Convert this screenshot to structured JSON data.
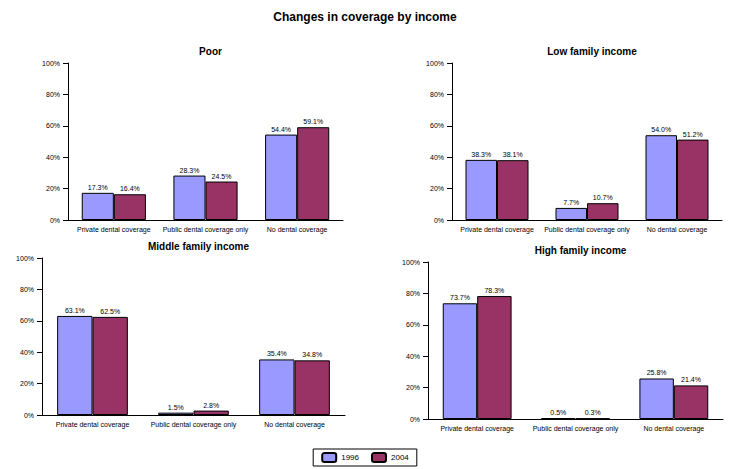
{
  "title": "Changes in coverage by income",
  "legend": "bottom",
  "chart_data": [
    {
      "type": "bar",
      "title": "Poor",
      "categories": [
        "Private dental coverage",
        "Public dental coverage only",
        "No dental coverage"
      ],
      "series": [
        {
          "name": "1996",
          "color": "#9999ff",
          "values": [
            17.3,
            28.3,
            54.4
          ],
          "value_labels": [
            "17.3%",
            "28.3%",
            "54.4%"
          ]
        },
        {
          "name": "2004",
          "color": "#993366",
          "values": [
            16.4,
            24.5,
            59.1
          ],
          "value_labels": [
            "16.4%",
            "24.5%",
            "59.1%"
          ]
        }
      ],
      "ylim": [
        0,
        100
      ],
      "yticks": [
        {
          "value": 0,
          "label": "0%"
        },
        {
          "value": 20,
          "label": "20%"
        },
        {
          "value": 40,
          "label": "40%"
        },
        {
          "value": 60,
          "label": "60%"
        },
        {
          "value": 80,
          "label": "80%"
        },
        {
          "value": 100,
          "label": "100%"
        }
      ],
      "grid": false,
      "data_labels": true
    },
    {
      "type": "bar",
      "title": "Low family income",
      "categories": [
        "Private dental coverage",
        "Public dental coverage only",
        "No dental coverage"
      ],
      "series": [
        {
          "name": "1996",
          "color": "#9999ff",
          "values": [
            38.3,
            7.7,
            54.0
          ],
          "value_labels": [
            "38.3%",
            "7.7%",
            "54.0%"
          ]
        },
        {
          "name": "2004",
          "color": "#993366",
          "values": [
            38.1,
            10.7,
            51.2
          ],
          "value_labels": [
            "38.1%",
            "10.7%",
            "51.2%"
          ]
        }
      ],
      "ylim": [
        0,
        100
      ],
      "yticks": [
        {
          "value": 0,
          "label": "0%"
        },
        {
          "value": 20,
          "label": "20%"
        },
        {
          "value": 40,
          "label": "40%"
        },
        {
          "value": 60,
          "label": "60%"
        },
        {
          "value": 80,
          "label": "80%"
        },
        {
          "value": 100,
          "label": "100%"
        }
      ],
      "grid": false,
      "data_labels": true
    },
    {
      "type": "bar",
      "title": "Middle family income",
      "categories": [
        "Private dental coverage",
        "Public dental coverage only",
        "No dental coverage"
      ],
      "series": [
        {
          "name": "1996",
          "color": "#9999ff",
          "values": [
            63.1,
            1.5,
            35.4
          ],
          "value_labels": [
            "63.1%",
            "1.5%",
            "35.4%"
          ]
        },
        {
          "name": "2004",
          "color": "#993366",
          "values": [
            62.5,
            2.8,
            34.8
          ],
          "value_labels": [
            "62.5%",
            "2.8%",
            "34.8%"
          ]
        }
      ],
      "ylim": [
        0,
        100
      ],
      "yticks": [
        {
          "value": 0,
          "label": "0%"
        },
        {
          "value": 20,
          "label": "20%"
        },
        {
          "value": 40,
          "label": "40%"
        },
        {
          "value": 60,
          "label": "60%"
        },
        {
          "value": 80,
          "label": "80%"
        },
        {
          "value": 100,
          "label": "100%"
        }
      ],
      "grid": false,
      "data_labels": true
    },
    {
      "type": "bar",
      "title": "High family income",
      "categories": [
        "Private dental coverage",
        "Public dental coverage only",
        "No dental coverage"
      ],
      "series": [
        {
          "name": "1996",
          "color": "#9999ff",
          "values": [
            73.7,
            0.5,
            25.8
          ],
          "value_labels": [
            "73.7%",
            "0.5%",
            "25.8%"
          ]
        },
        {
          "name": "2004",
          "color": "#993366",
          "values": [
            78.3,
            0.3,
            21.4
          ],
          "value_labels": [
            "78.3%",
            "0.3%",
            "21.4%"
          ]
        }
      ],
      "ylim": [
        0,
        100
      ],
      "yticks": [
        {
          "value": 0,
          "label": "0%"
        },
        {
          "value": 20,
          "label": "20%"
        },
        {
          "value": 40,
          "label": "40%"
        },
        {
          "value": 60,
          "label": "60%"
        },
        {
          "value": 80,
          "label": "80%"
        },
        {
          "value": 100,
          "label": "100%"
        }
      ],
      "grid": false,
      "data_labels": true
    }
  ]
}
